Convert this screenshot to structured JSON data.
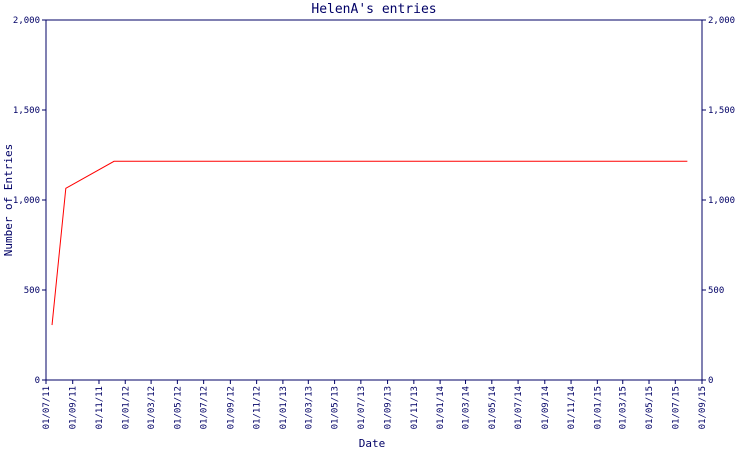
{
  "chart_data": {
    "type": "line",
    "title": "HelenA's entries",
    "x_label": "Date",
    "y_label": "Number of Entries",
    "x": [
      "15/07/11",
      "16/08/11",
      "06/12/11",
      "29/07/15"
    ],
    "series": [
      {
        "color": "#ff0000",
        "values": [
          305,
          1065,
          1215,
          1215
        ]
      }
    ],
    "xlim": [
      "01/07/11",
      "01/09/15"
    ],
    "xticks": [
      "01/07/11",
      "01/09/11",
      "01/11/11",
      "01/01/12",
      "01/03/12",
      "01/05/12",
      "01/07/12",
      "01/09/12",
      "01/11/12",
      "01/01/13",
      "01/03/13",
      "01/05/13",
      "01/07/13",
      "01/09/13",
      "01/11/13",
      "01/01/14",
      "01/03/14",
      "01/05/14",
      "01/07/14",
      "01/09/14",
      "01/11/14",
      "01/01/15",
      "01/03/15",
      "01/05/15",
      "01/07/15",
      "01/09/15"
    ],
    "ylim": [
      0,
      2000
    ],
    "yticks": [
      0,
      500,
      {
        "value": 1000,
        "label": "1,000"
      },
      {
        "value": 1500,
        "label": "1,500"
      },
      {
        "value": 2000,
        "label": "2,000"
      }
    ],
    "axis_color": "#000066"
  }
}
